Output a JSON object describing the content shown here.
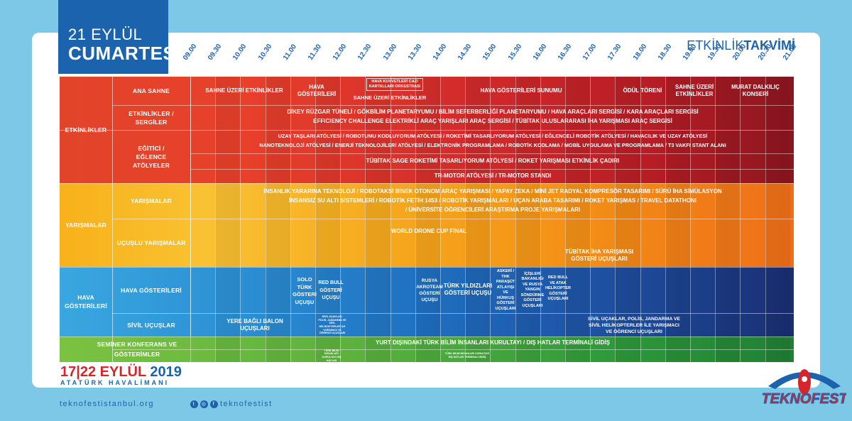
{
  "header": {
    "date_line1": "21 EYLÜL",
    "date_line2": "CUMARTESİ",
    "title_light": "ETKİNLİK",
    "title_bold": "TAKVİMİ"
  },
  "times": [
    "09.00",
    "09.30",
    "10.00",
    "10.30",
    "11.00",
    "11.30",
    "12.00",
    "12.30",
    "13.00",
    "13.30",
    "14.00",
    "14.30",
    "15.00",
    "15.30",
    "16.00",
    "16.30",
    "17.00",
    "17.30",
    "18.00",
    "18.30",
    "19.00",
    "19.30",
    "20.00",
    "20.30",
    "21.00"
  ],
  "groups": {
    "etkinlikler": "ETKİNLİKLER",
    "yarismalar": "YARIŞMALAR",
    "hava": "HAVA GÖSTERİLERİ",
    "seminer": "SEMİNER KONFERANS VE GÖSTERİMLER"
  },
  "subs": {
    "ana_sahne": "ANA SAHNE",
    "etkinlikler_sergiler": "ETKİNLİKLER / SERGİLER",
    "egitici": "EĞİTİCİ / EĞLENCE ATÖLYELER",
    "yarismalar": "YARIŞMALAR",
    "ucuslu": "UÇUŞLU YARIŞMALAR",
    "hava_gosterileri": "HAVA GÖSTERİLERİ",
    "sivil": "SİVİL UÇUŞLAR"
  },
  "events": {
    "sahne_uzeri": "SAHNE ÜZERİ ETKİNLİKLER",
    "hava_gosterileri": "HAVA GÖSTERİLERİ",
    "kuvvetleri": "HAVA KUVVETLERİ CAZ/ KARTALLARI ORKESTRASI",
    "sahne_uzeri2": "SAHNE ÜZERİ ETKİNLİKLER",
    "sunumu": "HAVA GÖSTERİLERİ SUNUMU",
    "odul": "ÖDÜL TÖRENİ",
    "sahne_uzeri3": "SAHNE ÜZERİ ETKİNLİKLER",
    "konser": "MURAT DALKILIÇ KONSERİ",
    "sergiler1": "DİKEY RÜZGAR TÜNELİ / GÖKBİLİM PLANETARYUMU / BİLİM SEFERBERLİĞİ PLANETARYUMU / HAVA ARAÇLARI SERGİSİ / KARA ARAÇLARI SERGİSİ",
    "sergiler2": "EFFICIENCY CHALLENGE ELEKTRİKLİ ARAÇ YARIŞLARI ARAÇ SERGİSİ / TÜBİTAK ULUSLARARASI İHA YARIŞMASI ARAÇ SERGİSİ",
    "atolye1": "UZAY TAŞLARI ATÖLYESİ / ROBOTUMU KODLUYORUM ATÖLYESİ / ROKETİMİ TASARLIYORUM ATÖLYESİ / EĞLENCELİ ROBOTİK ATÖLYESİ / HAVACILIK VE UZAY ATÖLYESİ",
    "atolye2": "NANOTEKNOLOJİ ATÖLYESİ / ENERJİ TEKNOLOJİLERİ ATÖLYESİ / ELEKTRONİK PROGRAMLAMA / ROBOTİK KODLAMA / MOBİL UYGULAMA VE PROGRAMLAMA / T3 VAKFI STANT ALANI",
    "sage": "TÜBİTAK SAGE ROKETİMİ TASARLIYORUM ATÖLYESİ / ROKET YARIŞMASI ETKİNLİK ÇADIRI",
    "trmotor": "TR-MOTOR ATÖLYESİ / TR-MOTOR STANDI",
    "yar1": "İNSANLIK YARARINA TEKNOLOJİ / ROBOTAKSİ BİNEK OTONOM ARAÇ YARIŞMASI / YAPAY ZEKA / MİNİ JET RADYAL KOMPRESÖR TASARIMI / SÜRÜ İHA SİMÜLASYON",
    "yar2": "İNSANSIZ SU ALTI SİSTEMLERİ / ROBOTİK FETİH 1453 / ROBOTİK YARIŞMALARI / UÇAN ARABA TASARIMI / ROKET YARIŞMAS / TRAVEL DATATHONI",
    "yar3": "/ ÜNİVERSİTE ÖĞRENCİLERİ ARAŞTIRMA PROJE YARIŞMALARI",
    "drone": "WORLD DRONE CUP FİNAL",
    "iha": "TÜBİTAK İHA YARIŞMASI GÖSTERİ UÇUŞLARI",
    "solo": "SOLO TÜRK GÖSTERİ UÇUŞU",
    "redbull": "RED BULL GÖSTERİ UÇUŞU",
    "rusya": "RUSYA AKROTEAM GÖSTERİ UÇUŞU",
    "turk": "TÜRK YILDIZLARI GÖSTERİ UÇUŞU",
    "askeri": "ASKERİ / THK PARAŞÜT ATLAYIŞI VE HÜRKUŞ GÖSTERİ UÇUŞLARI",
    "icisleri": "İÇİŞLERİ BAKANLIĞI VE RUSYA YANGIN SÖNDÜRME GÖSTERİ UÇUŞLARI",
    "redbull2": "RED BULL VE ATAK HELİKOPTER GÖSTERİ UÇUŞLARI",
    "balon": "YERE BAĞLI BALON UÇUŞLARI",
    "sivil_small": "SİVİL UÇAKLAR, POLİS, JANDARMA VE SİVİL HELİKOPTERLER İLE YARIŞMACI VE ÖĞRENCİ UÇUŞLARI",
    "sivil": "SİVİL UÇAKLAR, POLİS, JANDARMA VE SİVİL HELİKOPTERLER İLE YARIŞMACI VE ÖĞRENCİ UÇUŞLARI",
    "kurultay": "YURT DIŞINDAKİ TÜRK BİLİM İNSANLARI KURULTAYI / DIŞ HATLAR TERMİNALİ GİDİŞ",
    "sem_small1": "TÜRK BİLİM İNSANLARI KURULTAYI DIŞ HATLAR",
    "sem_small2": "TÜRK BİLİM İNSANLARI KURULTAYI DIŞ HATLAR TERMİNALİ GİDİŞ"
  },
  "footer": {
    "date_a": "17",
    "date_b": "22 EYLÜL",
    "date_year": "2019",
    "place": "ATATÜRK HAVALİMANI",
    "web": "teknofestistanbul.org",
    "social": "teknofestist",
    "logo_text": "TEKNOFEST"
  },
  "colors": {
    "blue": "#1c63ae",
    "red": "#d7262b"
  }
}
